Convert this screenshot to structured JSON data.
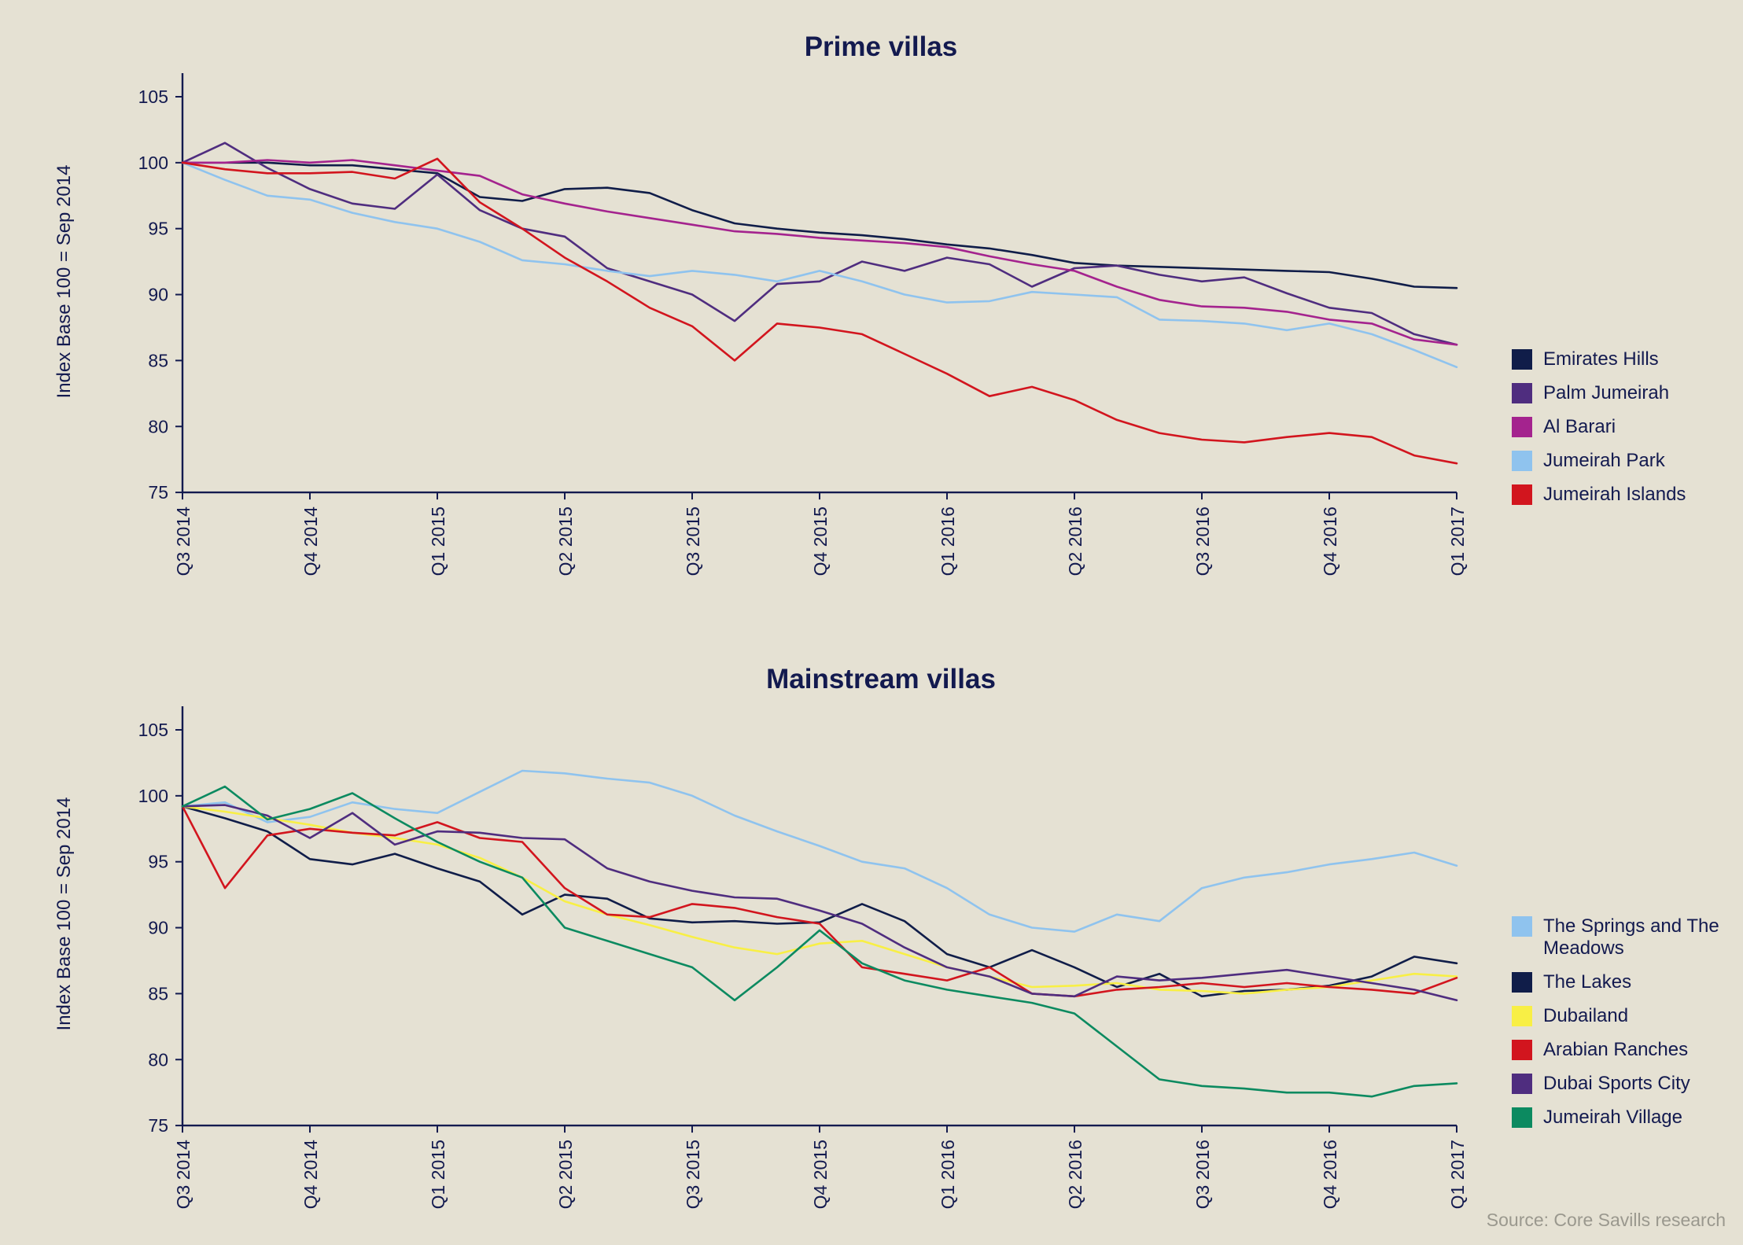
{
  "page": {
    "background": "#e5e1d3",
    "text_color": "#131a4f",
    "source_note": "Source: Core Savills research"
  },
  "chart_data": [
    {
      "type": "line",
      "title": "Prime villas",
      "ylabel": "Index Base 100 = Sep 2014",
      "ylim": [
        75,
        105
      ],
      "yticks": [
        105,
        100,
        95,
        90,
        85,
        80,
        75
      ],
      "x_tick_labels": [
        "Q3 2014",
        "Q4 2014",
        "Q1 2015",
        "Q2 2015",
        "Q3 2015",
        "Q4 2015",
        "Q1 2016",
        "Q2 2016",
        "Q3 2016",
        "Q4 2016",
        "Q1 2017"
      ],
      "x_tick_indices": [
        0,
        3,
        6,
        9,
        12,
        15,
        18,
        21,
        24,
        27,
        30
      ],
      "n_points": 31,
      "grid": false,
      "legend_position": "right",
      "series": [
        {
          "name": "Emirates Hills",
          "color": "#101d49",
          "values": [
            100,
            100,
            100,
            99.8,
            99.8,
            99.5,
            99.2,
            97.4,
            97.1,
            98,
            98.1,
            97.7,
            96.4,
            95.4,
            95,
            94.7,
            94.5,
            94.2,
            93.8,
            93.5,
            93,
            92.4,
            92.2,
            92.1,
            92,
            91.9,
            91.8,
            91.7,
            91.2,
            90.6,
            90.5
          ]
        },
        {
          "name": "Palm Jumeirah",
          "color": "#4f2d7f",
          "values": [
            100,
            101.5,
            99.6,
            98,
            96.9,
            96.5,
            99.1,
            96.4,
            95,
            94.4,
            92,
            91,
            90,
            88,
            90.8,
            91,
            92.5,
            91.8,
            92.8,
            92.3,
            90.6,
            92,
            92.2,
            91.5,
            91,
            91.3,
            90.1,
            89,
            88.6,
            87,
            86.2
          ]
        },
        {
          "name": "Al Barari",
          "color": "#a4238e",
          "values": [
            100,
            100,
            100.2,
            100,
            100.2,
            99.8,
            99.4,
            99,
            97.6,
            96.9,
            96.3,
            95.8,
            95.3,
            94.8,
            94.6,
            94.3,
            94.1,
            93.9,
            93.6,
            92.9,
            92.3,
            91.8,
            90.6,
            89.6,
            89.1,
            89,
            88.7,
            88.1,
            87.8,
            86.6,
            86.2
          ]
        },
        {
          "name": "Jumeirah Park",
          "color": "#8fc3ee",
          "values": [
            100,
            98.7,
            97.5,
            97.2,
            96.2,
            95.5,
            95,
            94,
            92.6,
            92.3,
            91.8,
            91.4,
            91.8,
            91.5,
            91,
            91.8,
            91,
            90,
            89.4,
            89.5,
            90.2,
            90,
            89.8,
            88.1,
            88,
            87.8,
            87.3,
            87.8,
            87,
            85.8,
            84.5
          ]
        },
        {
          "name": "Jumeirah Islands",
          "color": "#d2151e",
          "values": [
            100,
            99.5,
            99.2,
            99.2,
            99.3,
            98.8,
            100.3,
            97,
            95,
            92.8,
            91,
            89,
            87.6,
            85,
            87.8,
            87.5,
            87,
            85.5,
            84,
            82.3,
            83,
            82,
            80.5,
            79.5,
            79,
            78.8,
            79.2,
            79.5,
            79.2,
            77.8,
            77.2
          ]
        }
      ]
    },
    {
      "type": "line",
      "title": "Mainstream villas",
      "ylabel": "Index Base 100 = Sep 2014",
      "ylim": [
        75,
        105
      ],
      "yticks": [
        105,
        100,
        95,
        90,
        85,
        80,
        75
      ],
      "x_tick_labels": [
        "Q3 2014",
        "Q4 2014",
        "Q1 2015",
        "Q2 2015",
        "Q3 2015",
        "Q4 2015",
        "Q1 2016",
        "Q2 2016",
        "Q3 2016",
        "Q4 2016",
        "Q1 2017"
      ],
      "x_tick_indices": [
        0,
        3,
        6,
        9,
        12,
        15,
        18,
        21,
        24,
        27,
        30
      ],
      "n_points": 31,
      "grid": false,
      "legend_position": "right",
      "series": [
        {
          "name": "The Springs and The Meadows",
          "color": "#8fc3ee",
          "values": [
            99.2,
            99.5,
            98,
            98.4,
            99.5,
            99,
            98.7,
            100.3,
            101.9,
            101.7,
            101.3,
            101,
            100,
            98.5,
            97.3,
            96.2,
            95,
            94.5,
            93,
            91,
            90,
            89.7,
            91,
            90.5,
            93,
            93.8,
            94.2,
            94.8,
            95.2,
            95.7,
            94.7
          ]
        },
        {
          "name": "The Lakes",
          "color": "#101d49",
          "values": [
            99.2,
            98.3,
            97.3,
            95.2,
            94.8,
            95.6,
            94.5,
            93.5,
            91,
            92.5,
            92.2,
            90.7,
            90.4,
            90.5,
            90.3,
            90.4,
            91.8,
            90.5,
            88,
            87,
            88.3,
            87,
            85.5,
            86.5,
            84.8,
            85.2,
            85.3,
            85.6,
            86.3,
            87.8,
            87.3
          ]
        },
        {
          "name": "Dubailand",
          "color": "#f8ef45",
          "values": [
            99.2,
            98.8,
            98.3,
            97.8,
            97.2,
            96.8,
            96.3,
            95.3,
            93.8,
            92,
            91,
            90.2,
            89.3,
            88.5,
            88,
            88.8,
            89,
            88,
            87,
            86.3,
            85.5,
            85.6,
            85.8,
            85.3,
            85.2,
            85,
            85.3,
            85.5,
            86,
            86.5,
            86.3
          ]
        },
        {
          "name": "Arabian Ranches",
          "color": "#d2151e",
          "values": [
            99.2,
            93,
            97,
            97.5,
            97.2,
            97,
            98,
            96.8,
            96.5,
            93,
            91,
            90.8,
            91.8,
            91.5,
            90.8,
            90.3,
            87,
            86.5,
            86,
            87,
            85,
            84.8,
            85.3,
            85.5,
            85.8,
            85.5,
            85.8,
            85.5,
            85.3,
            85,
            86.2
          ]
        },
        {
          "name": "Dubai Sports City",
          "color": "#4f2d7f",
          "values": [
            99.2,
            99.3,
            98.5,
            96.8,
            98.7,
            96.3,
            97.3,
            97.2,
            96.8,
            96.7,
            94.5,
            93.5,
            92.8,
            92.3,
            92.2,
            91.3,
            90.3,
            88.5,
            87,
            86.3,
            85,
            84.8,
            86.3,
            86,
            86.2,
            86.5,
            86.8,
            86.3,
            85.8,
            85.3,
            84.5
          ]
        },
        {
          "name": "Jumeirah Village",
          "color": "#0c8a60",
          "values": [
            99.2,
            100.7,
            98.2,
            99,
            100.2,
            98.3,
            96.5,
            95,
            93.8,
            90,
            89,
            88,
            87,
            84.5,
            87,
            89.8,
            87.3,
            86,
            85.3,
            84.8,
            84.3,
            83.5,
            81,
            78.5,
            78,
            77.8,
            77.5,
            77.5,
            77.2,
            78,
            78.2
          ]
        }
      ]
    }
  ]
}
